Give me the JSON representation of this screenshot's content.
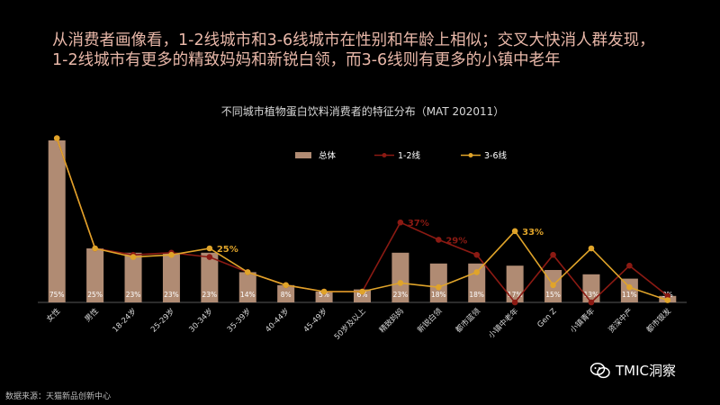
{
  "headline": {
    "line1": "从消费者画像看，1-2线城市和3-6线城市在性别和年龄上相似；交叉大快消人群发现，",
    "line2": "1-2线城市有更多的精致妈妈和新锐白领，而3-6线则有更多的小镇中老年"
  },
  "source": "数据来源：天猫新品创新中心",
  "brand": "TMIC洞察",
  "colors": {
    "bar": "#b08b73",
    "line12": "#8b1a13",
    "line36": "#e0a42a",
    "title": "#d9d9d9",
    "headline": "#e8b7a8"
  },
  "chart_data": {
    "type": "bar",
    "title": "不同城市植物蛋白饮料消费者的特征分布（MAT 202011）",
    "categories": [
      "女性",
      "男性",
      "18-24岁",
      "25-29岁",
      "30-34岁",
      "35-39岁",
      "40-44岁",
      "45-49岁",
      "50岁及以上",
      "精致妈妈",
      "新锐白领",
      "都市蓝领",
      "小镇中老年",
      "Gen Z",
      "小镇青年",
      "资深中产",
      "都市银发"
    ],
    "series": [
      {
        "name": "总体",
        "kind": "bar",
        "values": [
          75,
          25,
          23,
          23,
          23,
          14,
          8,
          5,
          6,
          23,
          18,
          18,
          17,
          15,
          13,
          11,
          3
        ],
        "labels": [
          "75%",
          "25%",
          "23%",
          "23%",
          "23%",
          "14%",
          "8%",
          "5%",
          "6%",
          "23%",
          "18%",
          "18%",
          "17%",
          "15%",
          "13%",
          "11%",
          "3%"
        ]
      },
      {
        "name": "1-2线",
        "kind": "line",
        "values": [
          76,
          25,
          22,
          23,
          21,
          14,
          8,
          5,
          5,
          37,
          29,
          22,
          0,
          22,
          0,
          17,
          3
        ]
      },
      {
        "name": "3-6线",
        "kind": "line",
        "values": [
          76,
          25,
          21,
          22,
          25,
          14,
          8,
          5,
          5,
          9,
          7,
          14,
          33,
          8,
          25,
          7,
          1
        ]
      }
    ],
    "annotations": [
      {
        "series": 1,
        "index": 9,
        "text": "37%"
      },
      {
        "series": 1,
        "index": 10,
        "text": "29%"
      },
      {
        "series": 2,
        "index": 12,
        "text": "33%"
      },
      {
        "series": 2,
        "index": 4,
        "text": "25%"
      }
    ],
    "ylim": [
      0,
      80
    ],
    "grid": false,
    "legend": "top-right"
  }
}
